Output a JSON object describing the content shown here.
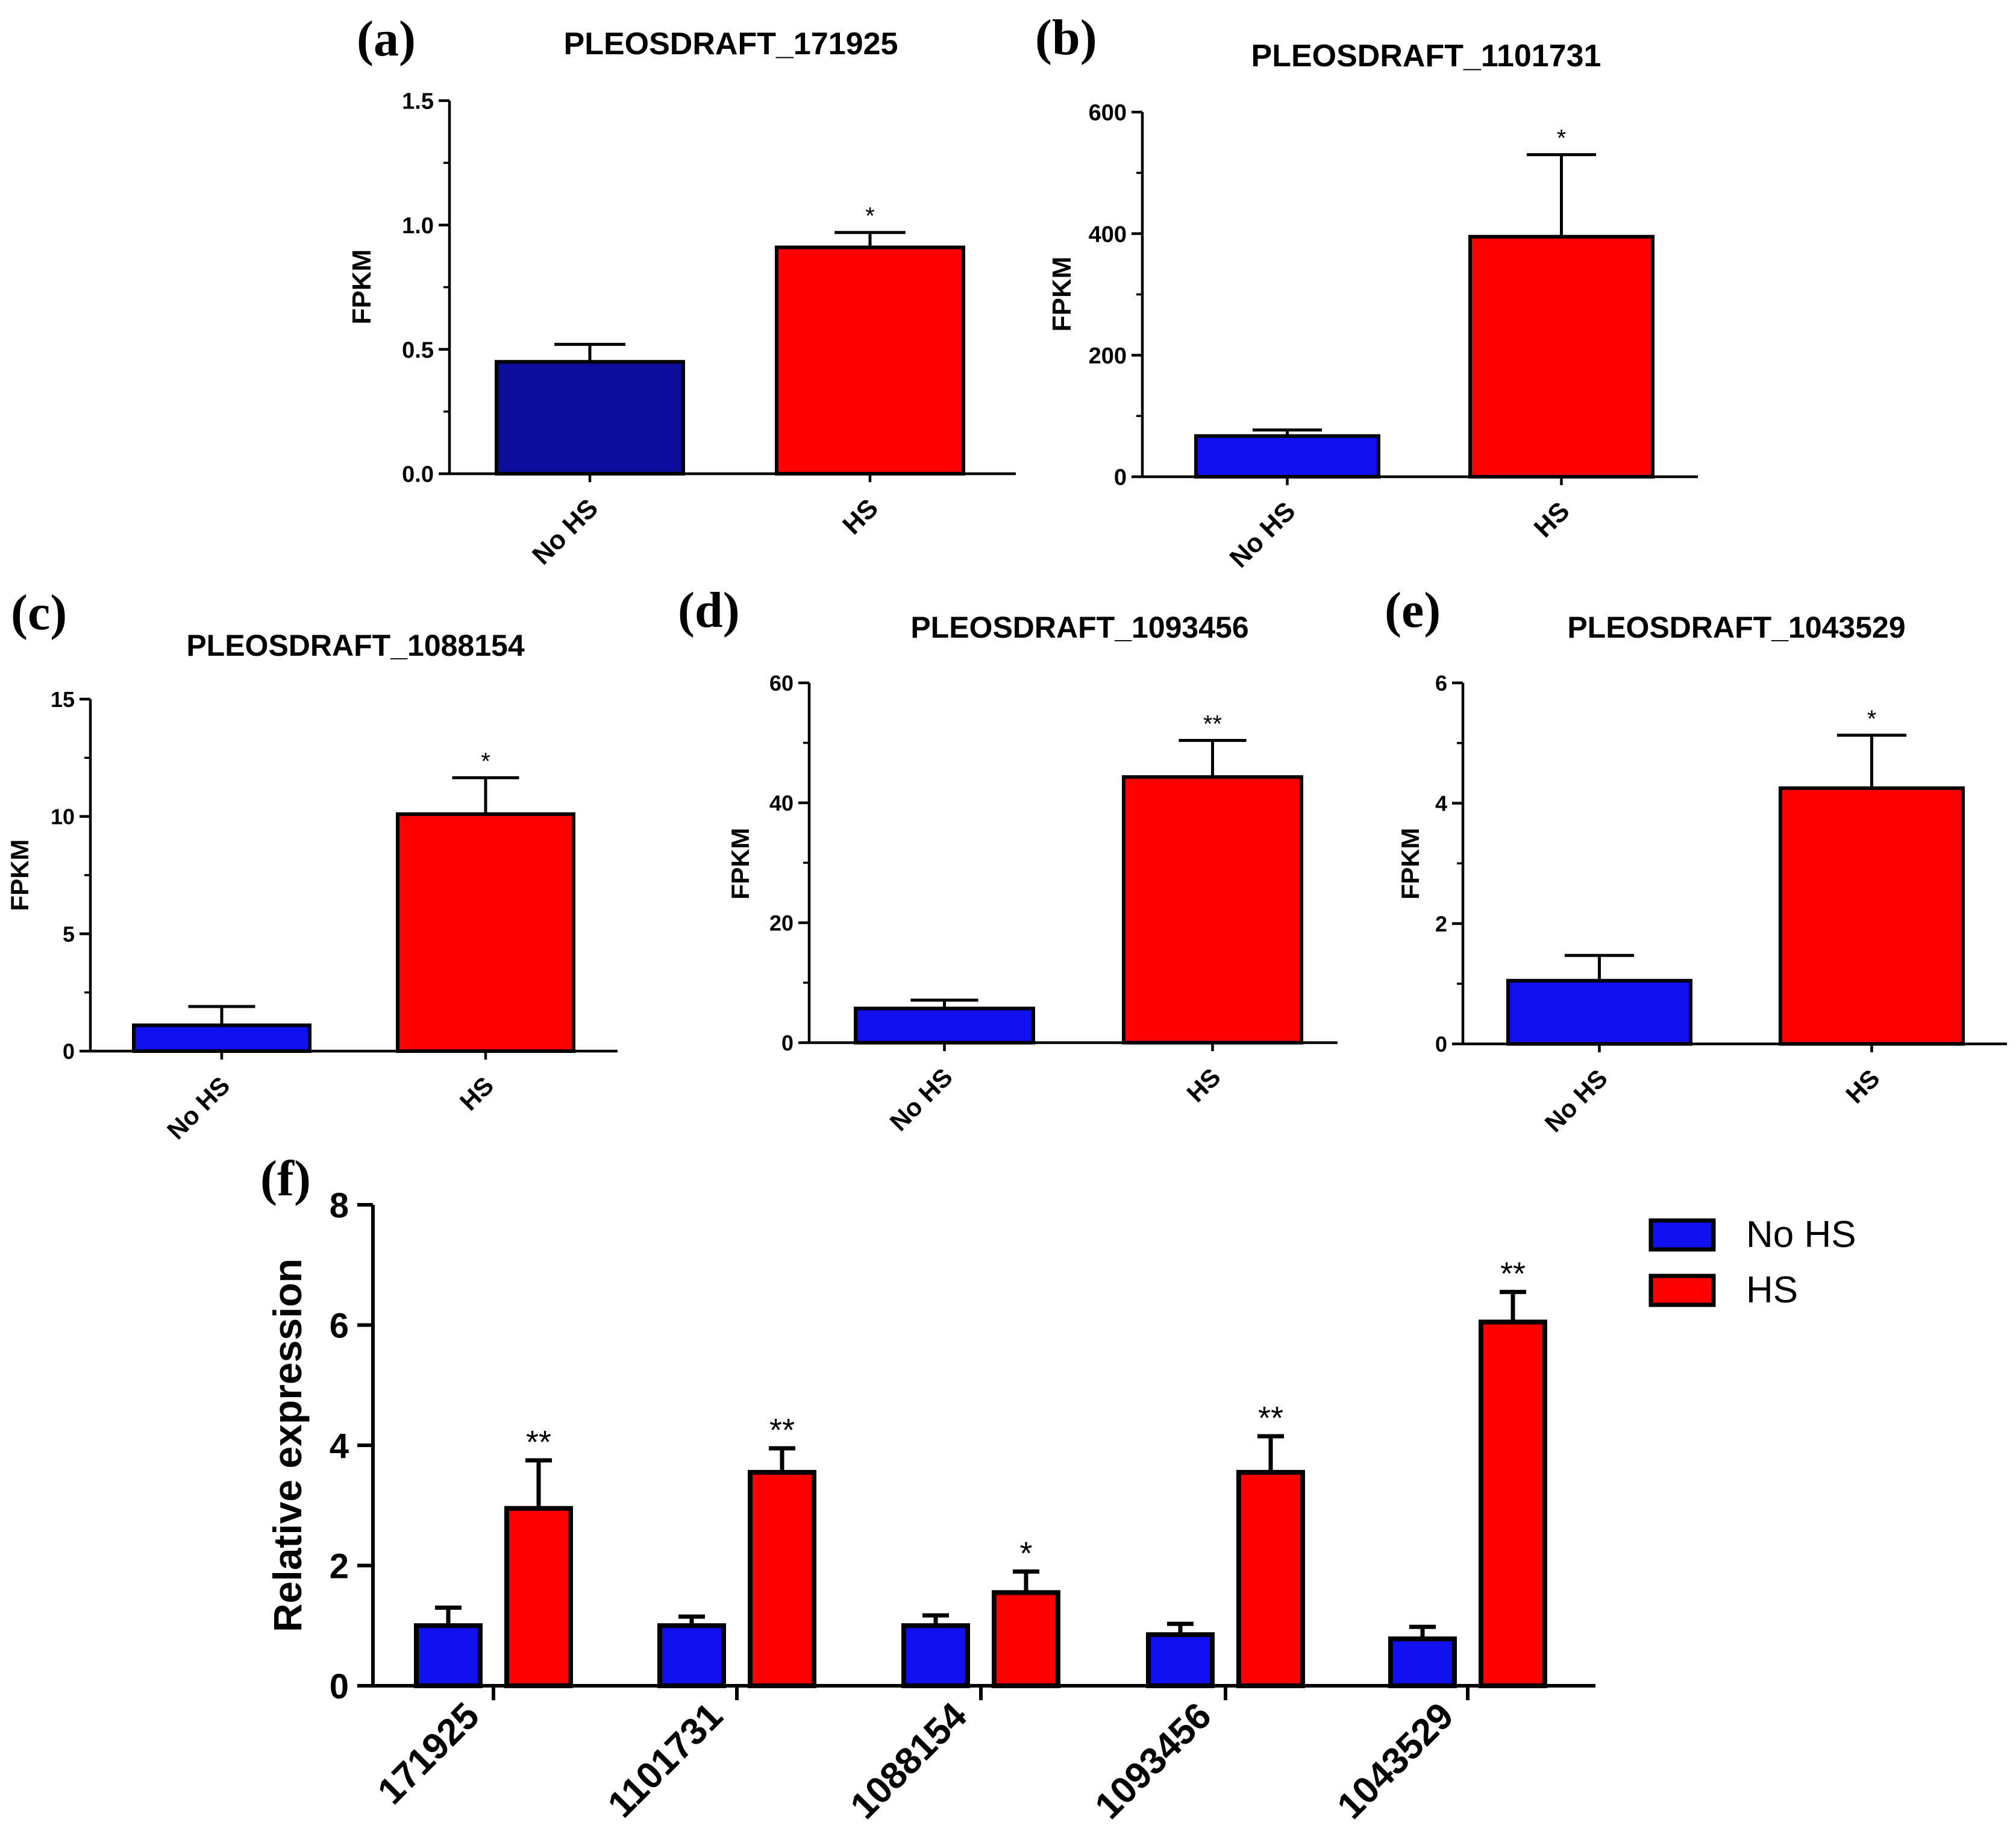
{
  "colors": {
    "no_hs": "#1010ee",
    "no_hs_dark": "#0c0c9a",
    "hs": "#ff0000",
    "axis": "#000000"
  },
  "chart_data": [
    {
      "id": "a",
      "letter": "(a)",
      "type": "bar",
      "title": "PLEOSDRAFT_171925",
      "ylabel": "FPKM",
      "ylim": [
        0,
        1.5
      ],
      "yticks": [
        "0.0",
        "0.5",
        "1.0",
        "1.5"
      ],
      "categories": [
        "No HS",
        "HS"
      ],
      "values": [
        0.45,
        0.91
      ],
      "errors": [
        0.07,
        0.06
      ],
      "significance": [
        "",
        "*"
      ]
    },
    {
      "id": "b",
      "letter": "(b)",
      "type": "bar",
      "title": "PLEOSDRAFT_1101731",
      "ylabel": "FPKM",
      "ylim": [
        0,
        600
      ],
      "yticks": [
        "0",
        "200",
        "400",
        "600"
      ],
      "categories": [
        "No HS",
        "HS"
      ],
      "values": [
        67,
        395
      ],
      "errors": [
        10,
        135
      ],
      "significance": [
        "",
        "*"
      ]
    },
    {
      "id": "c",
      "letter": "(c)",
      "type": "bar",
      "title": "PLEOSDRAFT_1088154",
      "ylabel": "FPKM",
      "ylim": [
        0,
        15
      ],
      "yticks": [
        "0",
        "5",
        "10",
        "15"
      ],
      "categories": [
        "No HS",
        "HS"
      ],
      "values": [
        1.1,
        10.1
      ],
      "errors": [
        0.8,
        1.55
      ],
      "significance": [
        "",
        "*"
      ]
    },
    {
      "id": "d",
      "letter": "(d)",
      "type": "bar",
      "title": "PLEOSDRAFT_1093456",
      "ylabel": "FPKM",
      "ylim": [
        0,
        60
      ],
      "yticks": [
        "0",
        "20",
        "40",
        "60"
      ],
      "categories": [
        "No HS",
        "HS"
      ],
      "values": [
        5.7,
        44.3
      ],
      "errors": [
        1.4,
        6.1
      ],
      "significance": [
        "",
        "**"
      ]
    },
    {
      "id": "e",
      "letter": "(e)",
      "type": "bar",
      "title": "PLEOSDRAFT_1043529",
      "ylabel": "FPKM",
      "ylim": [
        0,
        6
      ],
      "yticks": [
        "0",
        "2",
        "4",
        "6"
      ],
      "categories": [
        "No HS",
        "HS"
      ],
      "values": [
        1.05,
        4.25
      ],
      "errors": [
        0.42,
        0.88
      ],
      "significance": [
        "",
        "*"
      ]
    },
    {
      "id": "f",
      "letter": "(f)",
      "type": "bar",
      "title": "",
      "ylabel": "Relative expression",
      "ylim": [
        0,
        8
      ],
      "yticks": [
        "0",
        "2",
        "4",
        "6",
        "8"
      ],
      "categories": [
        "171925",
        "1101731",
        "1088154",
        "1093456",
        "1043529"
      ],
      "series": [
        {
          "name": "No HS",
          "values": [
            1.0,
            1.0,
            1.0,
            0.85,
            0.78
          ],
          "errors": [
            0.3,
            0.15,
            0.17,
            0.18,
            0.2
          ],
          "significance": [
            "",
            "",
            "",
            "",
            ""
          ]
        },
        {
          "name": "HS",
          "values": [
            2.95,
            3.55,
            1.55,
            3.55,
            6.05
          ],
          "errors": [
            0.8,
            0.4,
            0.35,
            0.6,
            0.5
          ],
          "significance": [
            "**",
            "**",
            "*",
            "**",
            "**"
          ]
        }
      ],
      "legend": {
        "position": "top-right",
        "entries": [
          "No HS",
          "HS"
        ]
      }
    }
  ]
}
